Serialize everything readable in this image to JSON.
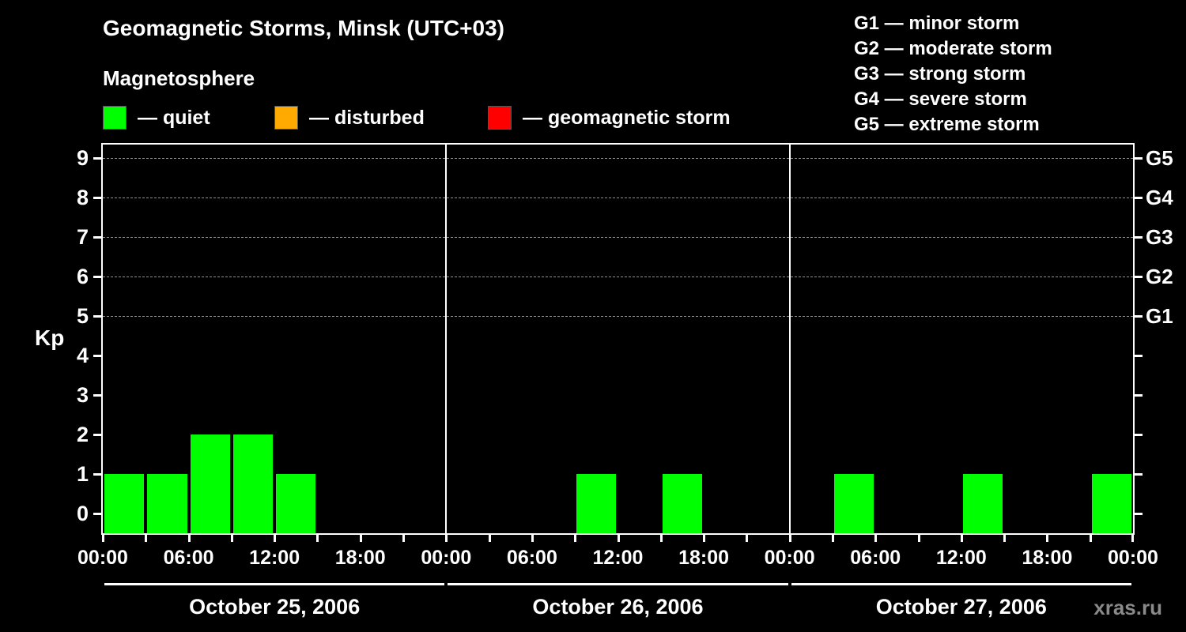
{
  "header": {
    "title": "Geomagnetic Storms, Minsk (UTC+03)",
    "subtitle": "Magnetosphere"
  },
  "legend": {
    "separator": "—",
    "items": [
      {
        "name": "quiet",
        "label": "quiet",
        "color": "#00ff00"
      },
      {
        "name": "disturbed",
        "label": "disturbed",
        "color": "#ffaa00"
      },
      {
        "name": "storm",
        "label": "geomagnetic storm",
        "color": "#ff0000"
      }
    ]
  },
  "storm_scale": [
    {
      "code": "G1",
      "label": "minor storm"
    },
    {
      "code": "G2",
      "label": "moderate storm"
    },
    {
      "code": "G3",
      "label": "strong storm"
    },
    {
      "code": "G4",
      "label": "severe storm"
    },
    {
      "code": "G5",
      "label": "extreme storm"
    }
  ],
  "chart_data": {
    "type": "bar",
    "title": "Geomagnetic Storms, Minsk (UTC+03)",
    "ylabel": "Kp",
    "xlabel": "",
    "ylim": [
      0,
      9
    ],
    "y_ticks": [
      0,
      1,
      2,
      3,
      4,
      5,
      6,
      7,
      8,
      9
    ],
    "grid": {
      "dashed_levels": [
        5,
        6,
        7,
        8,
        9
      ]
    },
    "g_levels": [
      {
        "code": "G1",
        "kp": 5
      },
      {
        "code": "G2",
        "kp": 6
      },
      {
        "code": "G3",
        "kp": 7
      },
      {
        "code": "G4",
        "kp": 8
      },
      {
        "code": "G5",
        "kp": 9
      }
    ],
    "bar_hours": 3,
    "colors": {
      "quiet": "#00ff00",
      "disturbed": "#ffaa00",
      "storm": "#ff0000"
    },
    "color_rule": {
      "quiet_max_kp": 3,
      "disturbed_max_kp": 4
    },
    "x_tick_labels_per_day": [
      "00:00",
      "06:00",
      "12:00",
      "18:00"
    ],
    "x_axis_end_label": "00:00",
    "legend_position": "top",
    "days": [
      {
        "date": "October 25, 2006",
        "kp_3h": [
          1,
          1,
          2,
          2,
          1,
          0,
          0,
          0
        ]
      },
      {
        "date": "October 26, 2006",
        "kp_3h": [
          0,
          0,
          0,
          1,
          0,
          1,
          0,
          0
        ]
      },
      {
        "date": "October 27, 2006",
        "kp_3h": [
          0,
          1,
          0,
          0,
          1,
          0,
          0,
          1
        ]
      }
    ]
  },
  "footer": {
    "watermark": "xras.ru"
  }
}
